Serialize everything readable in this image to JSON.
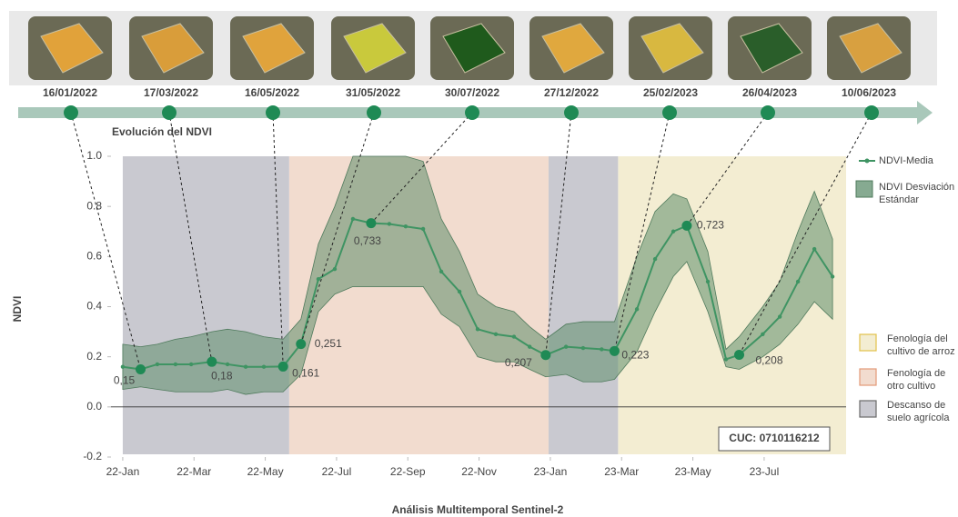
{
  "chart_data": {
    "type": "line",
    "title": "Evolución del NDVI",
    "xlabel": "Análisis Multitemporal Sentinel-2",
    "ylabel": "NDVI",
    "annotation": "CUC: 0710116212",
    "xlim": [
      -0.33,
      20.3
    ],
    "xticks": [
      {
        "value": 0,
        "label": "22-Jan"
      },
      {
        "value": 2,
        "label": "22-Mar"
      },
      {
        "value": 4,
        "label": "22-May"
      },
      {
        "value": 6,
        "label": "22-Jul"
      },
      {
        "value": 8,
        "label": "22-Sep"
      },
      {
        "value": 10,
        "label": "22-Nov"
      },
      {
        "value": 12,
        "label": "23-Jan"
      },
      {
        "value": 14,
        "label": "23-Mar"
      },
      {
        "value": 16,
        "label": "23-May"
      },
      {
        "value": 18,
        "label": "23-Jul"
      }
    ],
    "ylim": [
      -0.2,
      1.0
    ],
    "yticks": [
      -0.2,
      {
        "value": 0,
        "label": "0.0"
      },
      0.2,
      0.4,
      0.6,
      0.8,
      {
        "value": 1,
        "label": "1.0"
      }
    ],
    "x": [
      0,
      0.5,
      0.97,
      1.48,
      1.92,
      2.5,
      2.94,
      3.45,
      3.96,
      4.5,
      5.0,
      5.49,
      5.95,
      6.46,
      6.97,
      7.48,
      7.94,
      8.43,
      8.94,
      9.45,
      9.96,
      10.47,
      10.98,
      11.42,
      11.87,
      12.44,
      12.92,
      13.44,
      13.8,
      14.43,
      14.94,
      15.45,
      15.83,
      16.42,
      16.93,
      17.3,
      17.96,
      18.44,
      18.95,
      19.41,
      19.92
    ],
    "series": [
      {
        "name": "NDVI-Media",
        "color": "#3f9463",
        "values": [
          0.16,
          0.15,
          0.17,
          0.17,
          0.17,
          0.18,
          0.17,
          0.16,
          0.16,
          0.161,
          0.251,
          0.51,
          0.55,
          0.75,
          0.733,
          0.73,
          0.72,
          0.71,
          0.54,
          0.46,
          0.31,
          0.29,
          0.28,
          0.24,
          0.207,
          0.24,
          0.235,
          0.23,
          0.223,
          0.39,
          0.59,
          0.7,
          0.723,
          0.5,
          0.19,
          0.208,
          0.29,
          0.36,
          0.5,
          0.63,
          0.52
        ]
      },
      {
        "name": "NDVI Desviación Estándar",
        "color": "#5e8e6c",
        "upper": [
          0.25,
          0.24,
          0.25,
          0.27,
          0.28,
          0.3,
          0.31,
          0.3,
          0.28,
          0.27,
          0.35,
          0.65,
          0.8,
          1.0,
          1.0,
          1.0,
          1.0,
          0.98,
          0.75,
          0.62,
          0.45,
          0.4,
          0.38,
          0.32,
          0.27,
          0.33,
          0.34,
          0.34,
          0.34,
          0.6,
          0.78,
          0.85,
          0.83,
          0.62,
          0.23,
          0.28,
          0.4,
          0.5,
          0.7,
          0.86,
          0.67
        ],
        "lower": [
          0.07,
          0.08,
          0.07,
          0.06,
          0.06,
          0.06,
          0.07,
          0.05,
          0.06,
          0.06,
          0.13,
          0.38,
          0.45,
          0.48,
          0.48,
          0.48,
          0.48,
          0.48,
          0.37,
          0.32,
          0.2,
          0.18,
          0.18,
          0.15,
          0.12,
          0.13,
          0.1,
          0.1,
          0.11,
          0.22,
          0.38,
          0.52,
          0.58,
          0.38,
          0.16,
          0.15,
          0.2,
          0.25,
          0.33,
          0.42,
          0.35
        ]
      }
    ],
    "milestones": {
      "color": "#1f8a55",
      "dates": [
        "16/01/2022",
        "17/03/2022",
        "16/05/2022",
        "31/05/2022",
        "30/07/2022",
        "27/12/2022",
        "25/02/2023",
        "26/04/2023",
        "10/06/2023"
      ],
      "x": [
        0.5,
        2.5,
        4.5,
        5.0,
        6.97,
        11.87,
        13.8,
        15.83,
        17.3
      ],
      "values": [
        0.15,
        0.18,
        0.161,
        0.251,
        0.733,
        0.207,
        0.223,
        0.723,
        0.208
      ],
      "value_labels": [
        "0,15",
        "0,18",
        "0,161",
        "0,251",
        "0,733",
        "0,207",
        "0,223",
        "0,723",
        "0,208"
      ]
    },
    "regions": [
      {
        "name": "Fenología del cultivo de arroz",
        "color": "#f3edd2",
        "edge": "#e2c24a",
        "spans": [
          [
            13.9,
            20.3
          ]
        ]
      },
      {
        "name": "Fenología de otro cultivo",
        "color": "#f2dccf",
        "edge": "#e39a78",
        "spans": [
          [
            4.67,
            11.95
          ]
        ]
      },
      {
        "name": "Descanso de suelo agrícola",
        "color": "#c9c9d0",
        "edge": "#6a6a6a",
        "spans": [
          [
            0,
            4.67
          ],
          [
            11.95,
            13.9
          ]
        ]
      }
    ]
  }
}
